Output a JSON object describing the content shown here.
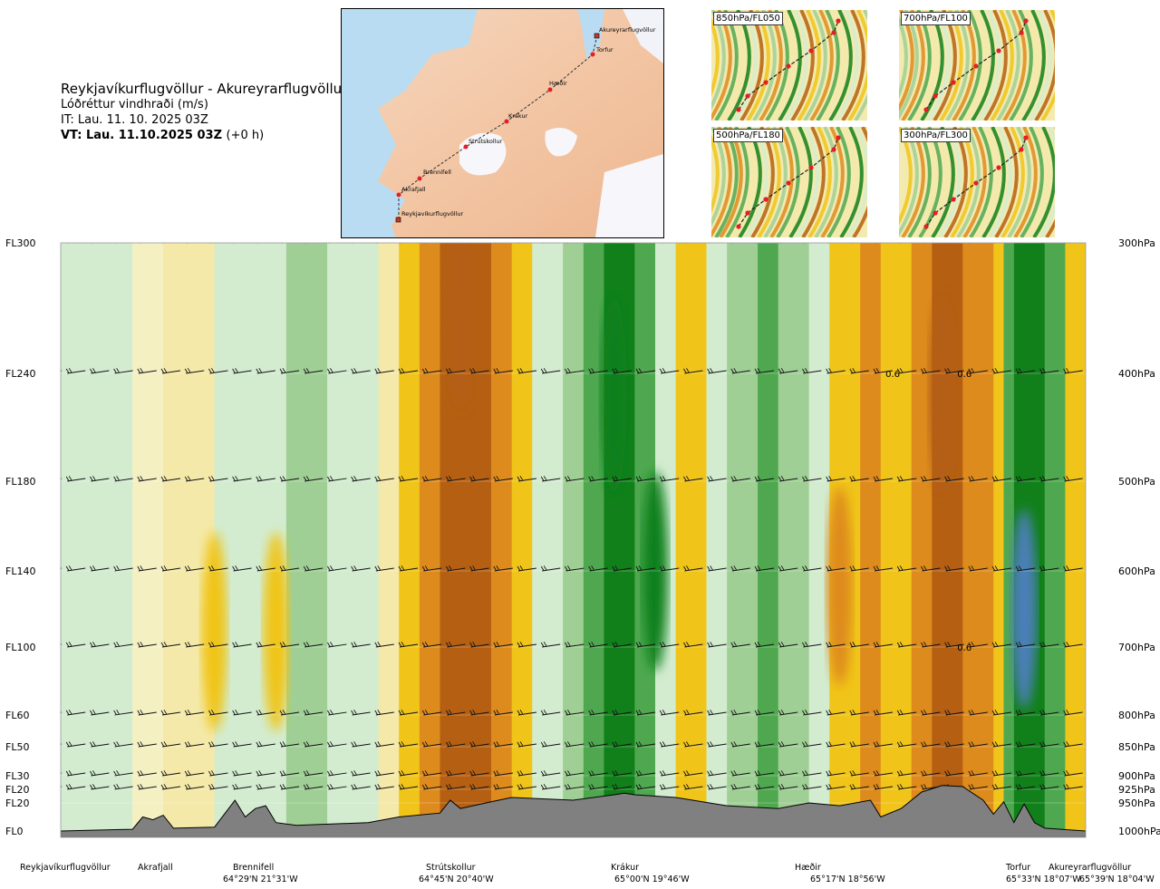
{
  "header": {
    "route": "Reykjavíkurflugvöllur - Akureyrarflugvöllur",
    "parameter": "Lóðréttur vindhraði (m/s)",
    "issue_time": "IT: Lau. 11. 10. 2025 03Z",
    "valid_time": "VT: Lau. 11.10.2025 03Z",
    "lead_time": "(+0 h)"
  },
  "map": {
    "waypoints": [
      "Akureyrarflugvöllur",
      "Torfur",
      "Hæðir",
      "Krákur",
      "Strútskollur",
      "Brennifell",
      "Akrafjall",
      "Reykjavíkurflugvöllur"
    ]
  },
  "thumbnails": [
    {
      "label": "850hPa/FL050"
    },
    {
      "label": "700hPa/FL100"
    },
    {
      "label": "500hPa/FL180"
    },
    {
      "label": "300hPa/FL300"
    }
  ],
  "colors": {
    "strong_down": "#b45f12",
    "mid_down": "#de8b1d",
    "weak_down": "#f0c419",
    "slight_down": "#f4e9a8",
    "neutral": "#f4f0c2",
    "slight_up": "#d3ecd0",
    "weak_up": "#9fcf95",
    "mid_up": "#4fa84f",
    "strong_up": "#11801a",
    "extreme_up": "#4c7fb9",
    "terrain": "#808080"
  },
  "chart_data": {
    "type": "heatmap",
    "title": "Reykjavíkurflugvöllur - Akureyrarflugvöllur",
    "variable": "Lóðréttur vindhraði (m/s)",
    "x_axis": "distance along route",
    "y_axis": "pressure level",
    "levels_fl": [
      "FL300",
      "FL240",
      "FL180",
      "FL140",
      "FL100",
      "FL60",
      "FL50",
      "FL30",
      "FL20",
      "FL20",
      "FL0"
    ],
    "levels_hpa": [
      "300hPa",
      "400hPa",
      "500hPa",
      "600hPa",
      "700hPa",
      "800hPa",
      "850hPa",
      "900hPa",
      "925hPa",
      "950hPa",
      "1000hPa"
    ],
    "pressure_values": [
      300,
      400,
      500,
      600,
      700,
      800,
      850,
      900,
      925,
      950,
      1000
    ],
    "waypoints": [
      {
        "name": "Reykjavíkurflugvöllur",
        "coord": ""
      },
      {
        "name": "Akrafjall",
        "coord": ""
      },
      {
        "name": "Brennifell",
        "coord": "64°29'N 21°31'W"
      },
      {
        "name": "Strútskollur",
        "coord": "64°45'N 20°40'W"
      },
      {
        "name": "Krákur",
        "coord": "65°00'N 19°46'W"
      },
      {
        "name": "Hæðir",
        "coord": "65°17'N 18°56'W"
      },
      {
        "name": "Torfur",
        "coord": "65°33'N 18°07'W"
      },
      {
        "name": "Akureyrarflugvöllur",
        "coord": "65°39'N 18°04'W"
      }
    ],
    "extrema_labels": [
      "0.6",
      "0.6",
      "0.6"
    ],
    "bands": [
      {
        "x0": 0,
        "x1": 7,
        "shade": "slight_up"
      },
      {
        "x0": 7,
        "x1": 10,
        "shade": "neutral"
      },
      {
        "x0": 10,
        "x1": 15,
        "shade": "slight_down"
      },
      {
        "x0": 15,
        "x1": 22,
        "shade": "slight_up"
      },
      {
        "x0": 22,
        "x1": 26,
        "shade": "weak_up"
      },
      {
        "x0": 26,
        "x1": 31,
        "shade": "slight_up"
      },
      {
        "x0": 31,
        "x1": 33,
        "shade": "slight_down"
      },
      {
        "x0": 33,
        "x1": 35,
        "shade": "weak_down"
      },
      {
        "x0": 35,
        "x1": 37,
        "shade": "mid_down"
      },
      {
        "x0": 37,
        "x1": 42,
        "shade": "strong_down"
      },
      {
        "x0": 42,
        "x1": 44,
        "shade": "mid_down"
      },
      {
        "x0": 44,
        "x1": 46,
        "shade": "weak_down"
      },
      {
        "x0": 46,
        "x1": 49,
        "shade": "slight_up"
      },
      {
        "x0": 49,
        "x1": 51,
        "shade": "weak_up"
      },
      {
        "x0": 51,
        "x1": 53,
        "shade": "mid_up"
      },
      {
        "x0": 53,
        "x1": 56,
        "shade": "strong_up"
      },
      {
        "x0": 56,
        "x1": 58,
        "shade": "mid_up"
      },
      {
        "x0": 58,
        "x1": 60,
        "shade": "slight_up"
      },
      {
        "x0": 60,
        "x1": 63,
        "shade": "weak_down"
      },
      {
        "x0": 63,
        "x1": 65,
        "shade": "slight_up"
      },
      {
        "x0": 65,
        "x1": 68,
        "shade": "weak_up"
      },
      {
        "x0": 68,
        "x1": 70,
        "shade": "mid_up"
      },
      {
        "x0": 70,
        "x1": 73,
        "shade": "weak_up"
      },
      {
        "x0": 73,
        "x1": 75,
        "shade": "slight_up"
      },
      {
        "x0": 75,
        "x1": 78,
        "shade": "weak_down"
      },
      {
        "x0": 78,
        "x1": 80,
        "shade": "mid_down"
      },
      {
        "x0": 80,
        "x1": 83,
        "shade": "weak_down"
      },
      {
        "x0": 83,
        "x1": 85,
        "shade": "mid_down"
      },
      {
        "x0": 85,
        "x1": 88,
        "shade": "strong_down"
      },
      {
        "x0": 88,
        "x1": 91,
        "shade": "mid_down"
      },
      {
        "x0": 91,
        "x1": 92,
        "shade": "weak_down"
      },
      {
        "x0": 92,
        "x1": 93,
        "shade": "mid_up"
      },
      {
        "x0": 93,
        "x1": 96,
        "shade": "strong_up"
      },
      {
        "x0": 96,
        "x1": 98,
        "shade": "mid_up"
      },
      {
        "x0": 98,
        "x1": 100,
        "shade": "weak_down"
      }
    ],
    "cores": [
      {
        "x": 39,
        "p": 350,
        "shade": "strong_down"
      },
      {
        "x": 54,
        "p": 420,
        "shade": "strong_up"
      },
      {
        "x": 58,
        "p": 600,
        "shade": "strong_up"
      },
      {
        "x": 86,
        "p": 420,
        "shade": "strong_down"
      },
      {
        "x": 94,
        "p": 650,
        "shade": "extreme_up"
      },
      {
        "x": 15,
        "p": 680,
        "shade": "weak_down"
      },
      {
        "x": 21,
        "p": 680,
        "shade": "weak_down"
      },
      {
        "x": 76,
        "p": 620,
        "shade": "mid_down"
      }
    ],
    "terrain_profile": [
      [
        0,
        1000
      ],
      [
        7,
        997
      ],
      [
        8,
        975
      ],
      [
        9,
        980
      ],
      [
        10,
        972
      ],
      [
        11,
        995
      ],
      [
        15,
        993
      ],
      [
        17,
        945
      ],
      [
        18,
        975
      ],
      [
        19,
        960
      ],
      [
        20,
        955
      ],
      [
        21,
        985
      ],
      [
        23,
        990
      ],
      [
        30,
        985
      ],
      [
        33,
        975
      ],
      [
        37,
        968
      ],
      [
        38,
        945
      ],
      [
        39,
        960
      ],
      [
        41,
        952
      ],
      [
        42,
        948
      ],
      [
        44,
        940
      ],
      [
        50,
        945
      ],
      [
        54,
        935
      ],
      [
        55,
        932
      ],
      [
        56,
        935
      ],
      [
        60,
        940
      ],
      [
        65,
        955
      ],
      [
        70,
        960
      ],
      [
        73,
        950
      ],
      [
        76,
        955
      ],
      [
        79,
        945
      ],
      [
        80,
        975
      ],
      [
        82,
        960
      ],
      [
        84,
        930
      ],
      [
        86,
        918
      ],
      [
        88,
        920
      ],
      [
        90,
        945
      ],
      [
        91,
        970
      ],
      [
        92,
        948
      ],
      [
        93,
        985
      ],
      [
        94,
        952
      ],
      [
        95,
        985
      ],
      [
        96,
        995
      ],
      [
        100,
        1000
      ]
    ]
  }
}
